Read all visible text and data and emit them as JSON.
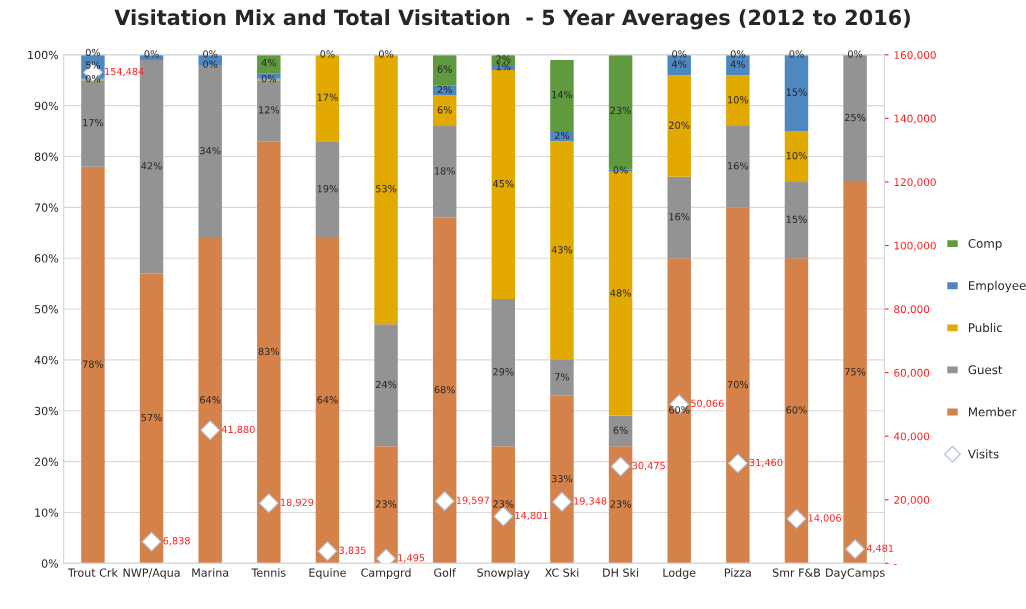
{
  "chart_data": {
    "type": "bar",
    "title": "Visitation Mix and Total Visitation  - 5 Year Averages (2012 to 2016)",
    "categories": [
      "Trout Crk",
      "NWP/Aqua",
      "Marina",
      "Tennis",
      "Equine",
      "Campgrd",
      "Golf",
      "Snowplay",
      "XC Ski",
      "DH Ski",
      "Lodge",
      "Pizza",
      "Smr F&B",
      "DayCamps"
    ],
    "stacked": true,
    "series": [
      {
        "name": "Member",
        "color": "#d4814a",
        "values": [
          78,
          57,
          64,
          83,
          64,
          23,
          68,
          23,
          33,
          23,
          60,
          70,
          60,
          75
        ],
        "value_labels": [
          "78%",
          "57%",
          "64%",
          "83%",
          "64%",
          "23%",
          "68%",
          "23%",
          "33%",
          "23%",
          "60%",
          "70%",
          "60%",
          "75%"
        ]
      },
      {
        "name": "Guest",
        "color": "#939393",
        "values": [
          17,
          42,
          34,
          12,
          19,
          24,
          18,
          29,
          7,
          6,
          16,
          16,
          15,
          25
        ],
        "value_labels": [
          "17%",
          "42%",
          "34%",
          "12%",
          "19%",
          "24%",
          "18%",
          "29%",
          "7%",
          "6%",
          "16%",
          "16%",
          "15%",
          "25%"
        ]
      },
      {
        "name": "Public",
        "color": "#e2aa00",
        "values": [
          0.3,
          0,
          0,
          0.3,
          17,
          53,
          6,
          45,
          43,
          48,
          20,
          10,
          10,
          0
        ],
        "value_labels": [
          "0%",
          null,
          "0%",
          "0%",
          "17%",
          "53%",
          "6%",
          "45%",
          "43%",
          "48%",
          "20%",
          "10%",
          "10%",
          null
        ]
      },
      {
        "name": "Employee",
        "color": "#4f88c0",
        "values": [
          5,
          1,
          2,
          1,
          0,
          0,
          2,
          1,
          2,
          0.4,
          4,
          4,
          15,
          0
        ],
        "value_labels": [
          "5%",
          null,
          null,
          null,
          null,
          null,
          "2%",
          "1%",
          "2%",
          "0%",
          "4%",
          "4%",
          "15%",
          null
        ]
      },
      {
        "name": "Comp",
        "color": "#5f9a3e",
        "values": [
          0,
          0,
          0,
          4,
          0,
          0,
          6,
          2,
          14,
          23,
          0,
          0,
          0,
          0
        ],
        "value_labels": [
          "0%",
          "0%",
          "0%",
          "4%",
          "0%",
          "0%",
          "6%",
          "2%",
          "14%",
          "23%",
          "0%",
          "0%",
          "0%",
          "0%"
        ]
      },
      {
        "name": "Visits",
        "type": "scatter",
        "axis": "y2",
        "color": "#ffffff",
        "marker": "diamond",
        "values": [
          154484,
          6838,
          41880,
          18929,
          3835,
          1495,
          19597,
          14801,
          19348,
          30475,
          50066,
          31460,
          14006,
          4481
        ],
        "value_labels": [
          "154,484",
          "6,838",
          "41,880",
          "18,929",
          "3,835",
          "1,495",
          "19,597",
          "14,801",
          "19,348",
          "30,475",
          "50,066",
          "31,460",
          "14,006",
          "4,481"
        ]
      }
    ],
    "ylim": [
      0,
      100
    ],
    "yticks": [
      {
        "value": 0,
        "label": "0%"
      },
      {
        "value": 10,
        "label": "10%"
      },
      {
        "value": 20,
        "label": "20%"
      },
      {
        "value": 30,
        "label": "30%"
      },
      {
        "value": 40,
        "label": "40%"
      },
      {
        "value": 50,
        "label": "50%"
      },
      {
        "value": 60,
        "label": "60%"
      },
      {
        "value": 70,
        "label": "70%"
      },
      {
        "value": 80,
        "label": "80%"
      },
      {
        "value": 90,
        "label": "90%"
      },
      {
        "value": 100,
        "label": "100%"
      }
    ],
    "y2lim": [
      0,
      160000
    ],
    "y2ticks": [
      {
        "value": 0,
        "label": "-"
      },
      {
        "value": 20000,
        "label": "20,000"
      },
      {
        "value": 40000,
        "label": "40,000"
      },
      {
        "value": 60000,
        "label": "60,000"
      },
      {
        "value": 80000,
        "label": "80,000"
      },
      {
        "value": 100000,
        "label": "100,000"
      },
      {
        "value": 120000,
        "label": "120,000"
      },
      {
        "value": 140000,
        "label": "140,000"
      },
      {
        "value": 160000,
        "label": "160,000"
      }
    ],
    "grid": "y",
    "legend": "right"
  }
}
